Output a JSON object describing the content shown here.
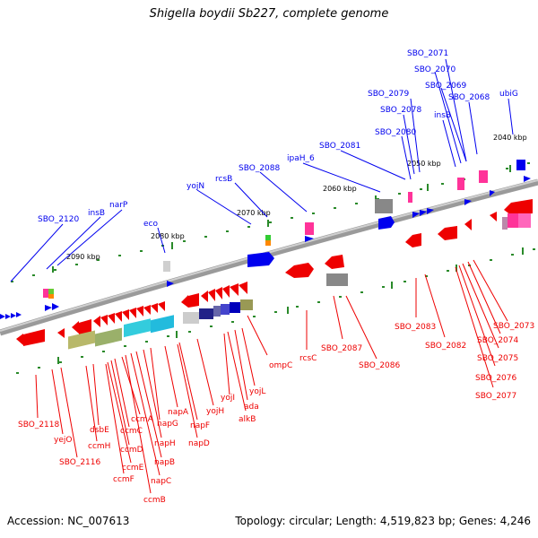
{
  "title": "Shigella boydii Sb227, complete genome",
  "accession": "Accession: NC_007613",
  "topology": "Topology: circular; Length: 4,519,823 bp; Genes: 4,246",
  "colors": {
    "plus_strand": "#0000ee",
    "minus_strand": "#ee0000",
    "backbone": "#888888",
    "tick": "#2a8a2a"
  },
  "scale_labels": [
    "2040 kbp",
    "2050 kbp",
    "2060 kbp",
    "2070 kbp",
    "2080 kbp",
    "2090 kbp"
  ],
  "top_labels": [
    "SBO_2071",
    "SBO_2070",
    "SBO_2069",
    "SBO_2068",
    "SBO_2079",
    "SBO_2078",
    "insB",
    "ubiG",
    "SBO_2080",
    "SBO_2081",
    "ipaH_6",
    "SBO_2088",
    "rcsB",
    "yojN",
    "eco",
    "narP",
    "insB",
    "SBO_2120"
  ],
  "bottom_labels": [
    "SBO_2073",
    "SBO_2074",
    "SBO_2075",
    "SBO_2076",
    "SBO_2077",
    "SBO_2083",
    "SBO_2082",
    "SBO_2087",
    "SBO_2086",
    "rcsC",
    "ompC",
    "yojL",
    "ada",
    "alkB",
    "yojI",
    "yojH",
    "napF",
    "napD",
    "napA",
    "napG",
    "napH",
    "napB",
    "napC",
    "ccmB",
    "ccmA",
    "ccmC",
    "ccmD",
    "ccmE",
    "ccmF",
    "ccmH",
    "dsbE",
    "yejO",
    "SBO_2118",
    "SBO_2116"
  ]
}
